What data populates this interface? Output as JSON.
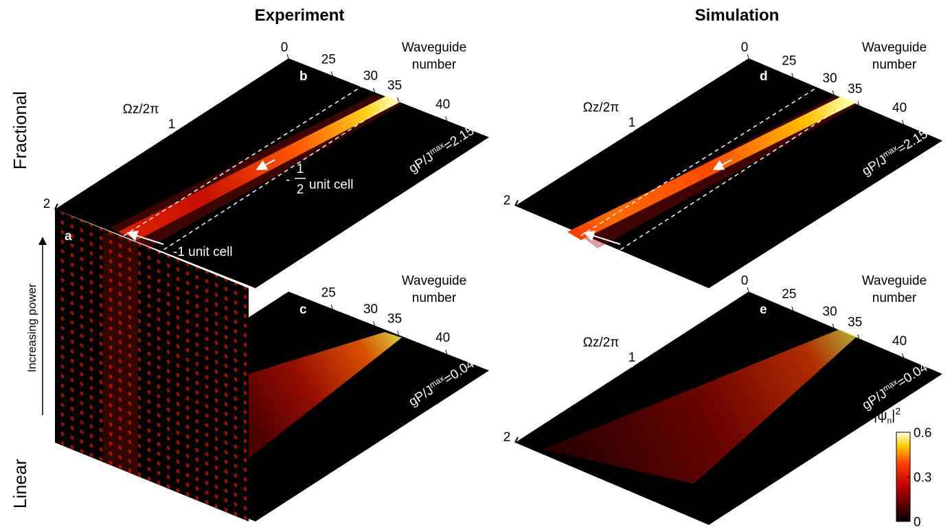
{
  "titles": {
    "left": "Experiment",
    "right": "Simulation"
  },
  "row_labels": {
    "top": "Fractional",
    "bottom": "Linear"
  },
  "power_arrow_label": "Increasing power",
  "panels": [
    {
      "letter": "a"
    },
    {
      "letter": "b",
      "waveguide_ticks": [
        "0",
        "25",
        "30",
        "35",
        "40"
      ],
      "waveguide_title": [
        "Waveguide",
        "number"
      ],
      "z_title": "Ωz/2π",
      "z_ticks": [
        "1",
        "2"
      ],
      "power": {
        "base": "gP/J",
        "sup": "max",
        "value": "=2.15"
      },
      "annotations": [
        {
          "text": "-1 unit cell"
        },
        {
          "sign": "-",
          "numerator": "1",
          "denominator": "2",
          "text": "unit cell"
        }
      ]
    },
    {
      "letter": "c",
      "waveguide_ticks": [
        "25",
        "30",
        "35",
        "40"
      ],
      "waveguide_title": [
        "Waveguide",
        "number"
      ],
      "power": {
        "base": "gP/J",
        "sup": "max",
        "value": "=0.04"
      }
    },
    {
      "letter": "d",
      "waveguide_ticks": [
        "0",
        "25",
        "30",
        "35",
        "40"
      ],
      "waveguide_title": [
        "Waveguide",
        "number"
      ],
      "z_title": "Ωz/2π",
      "z_ticks": [
        "1",
        "2"
      ],
      "power": {
        "base": "gP/J",
        "sup": "max",
        "value": "=2.15"
      }
    },
    {
      "letter": "e",
      "waveguide_ticks": [
        "0",
        "25",
        "30",
        "35",
        "40"
      ],
      "waveguide_title": [
        "Waveguide",
        "number"
      ],
      "z_title": "Ωz/2π",
      "z_ticks": [
        "1",
        "2"
      ],
      "power": {
        "base": "gP/J",
        "sup": "max",
        "value": "=0.04"
      }
    }
  ],
  "colorbar": {
    "label": {
      "open": "|ψ",
      "sub": "n",
      "close": "|",
      "sup": "2"
    },
    "lim": [
      0,
      0.6
    ],
    "ticks": [
      0,
      0.3,
      0.6
    ]
  }
}
